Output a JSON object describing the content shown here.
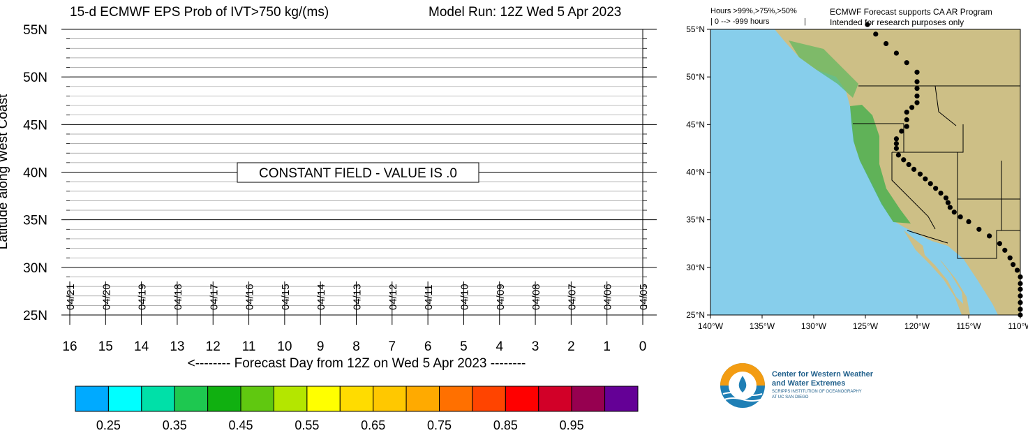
{
  "header": {
    "left_title": "15-d ECMWF EPS Prob of IVT>750 kg/(ms)",
    "right_title": "Model Run: 12Z Wed 5 Apr 2023"
  },
  "chart_data": {
    "type": "heatmap",
    "ylabel": "Latitude along West Coast",
    "xlabel": "<-------- Forecast Day from 12Z on Wed 5 Apr 2023 --------",
    "annotation": "CONSTANT FIELD - VALUE IS .0",
    "grid": true,
    "x_ticks": [
      "16",
      "15",
      "14",
      "13",
      "12",
      "11",
      "10",
      "9",
      "8",
      "7",
      "6",
      "5",
      "4",
      "3",
      "2",
      "1",
      "0"
    ],
    "x_range": [
      16,
      0
    ],
    "date_labels": [
      "04/21",
      "04/20",
      "04/19",
      "04/18",
      "04/17",
      "04/16",
      "04/15",
      "04/14",
      "04/13",
      "04/12",
      "04/11",
      "04/10",
      "04/09",
      "04/08",
      "04/07",
      "04/06",
      "04/05"
    ],
    "y_ticks": [
      "25N",
      "30N",
      "35N",
      "40N",
      "45N",
      "50N",
      "55N"
    ],
    "y_range": [
      25,
      55
    ],
    "values": [],
    "colorbar": {
      "labels": [
        "0.25",
        "0.35",
        "0.45",
        "0.55",
        "0.65",
        "0.75",
        "0.85",
        "0.95"
      ],
      "colors": [
        "#00aaff",
        "#00ffff",
        "#00e0a8",
        "#1ec850",
        "#10b010",
        "#60c810",
        "#b4e600",
        "#ffff00",
        "#ffdc00",
        "#ffc800",
        "#ffaa00",
        "#ff7000",
        "#ff4400",
        "#ff0000",
        "#d20028",
        "#960050",
        "#640096"
      ]
    }
  },
  "map": {
    "legend_line1": "Hours >99%,>75%,>50%",
    "legend_line2": "| 0 --> -999 hours",
    "legend_sep": "|",
    "note1": "ECMWF Forecast supports CA AR Program",
    "note2": "Intended for research purposes only",
    "lat_labels": [
      "55°N",
      "50°N",
      "45°N",
      "40°N",
      "35°N",
      "30°N",
      "25°N"
    ],
    "lon_labels": [
      "140°W",
      "135°W",
      "130°W",
      "125°W",
      "120°W",
      "115°W",
      "110°W"
    ],
    "ocean_color": "#87ceeb",
    "land_color": "#d9c98a"
  },
  "logo": {
    "line1": "Center for Western Weather",
    "line2": "and Water Extremes",
    "line3": "SCRIPPS INSTITUTION OF OCEANOGRAPHY",
    "line4": "AT UC SAN DIEGO"
  }
}
